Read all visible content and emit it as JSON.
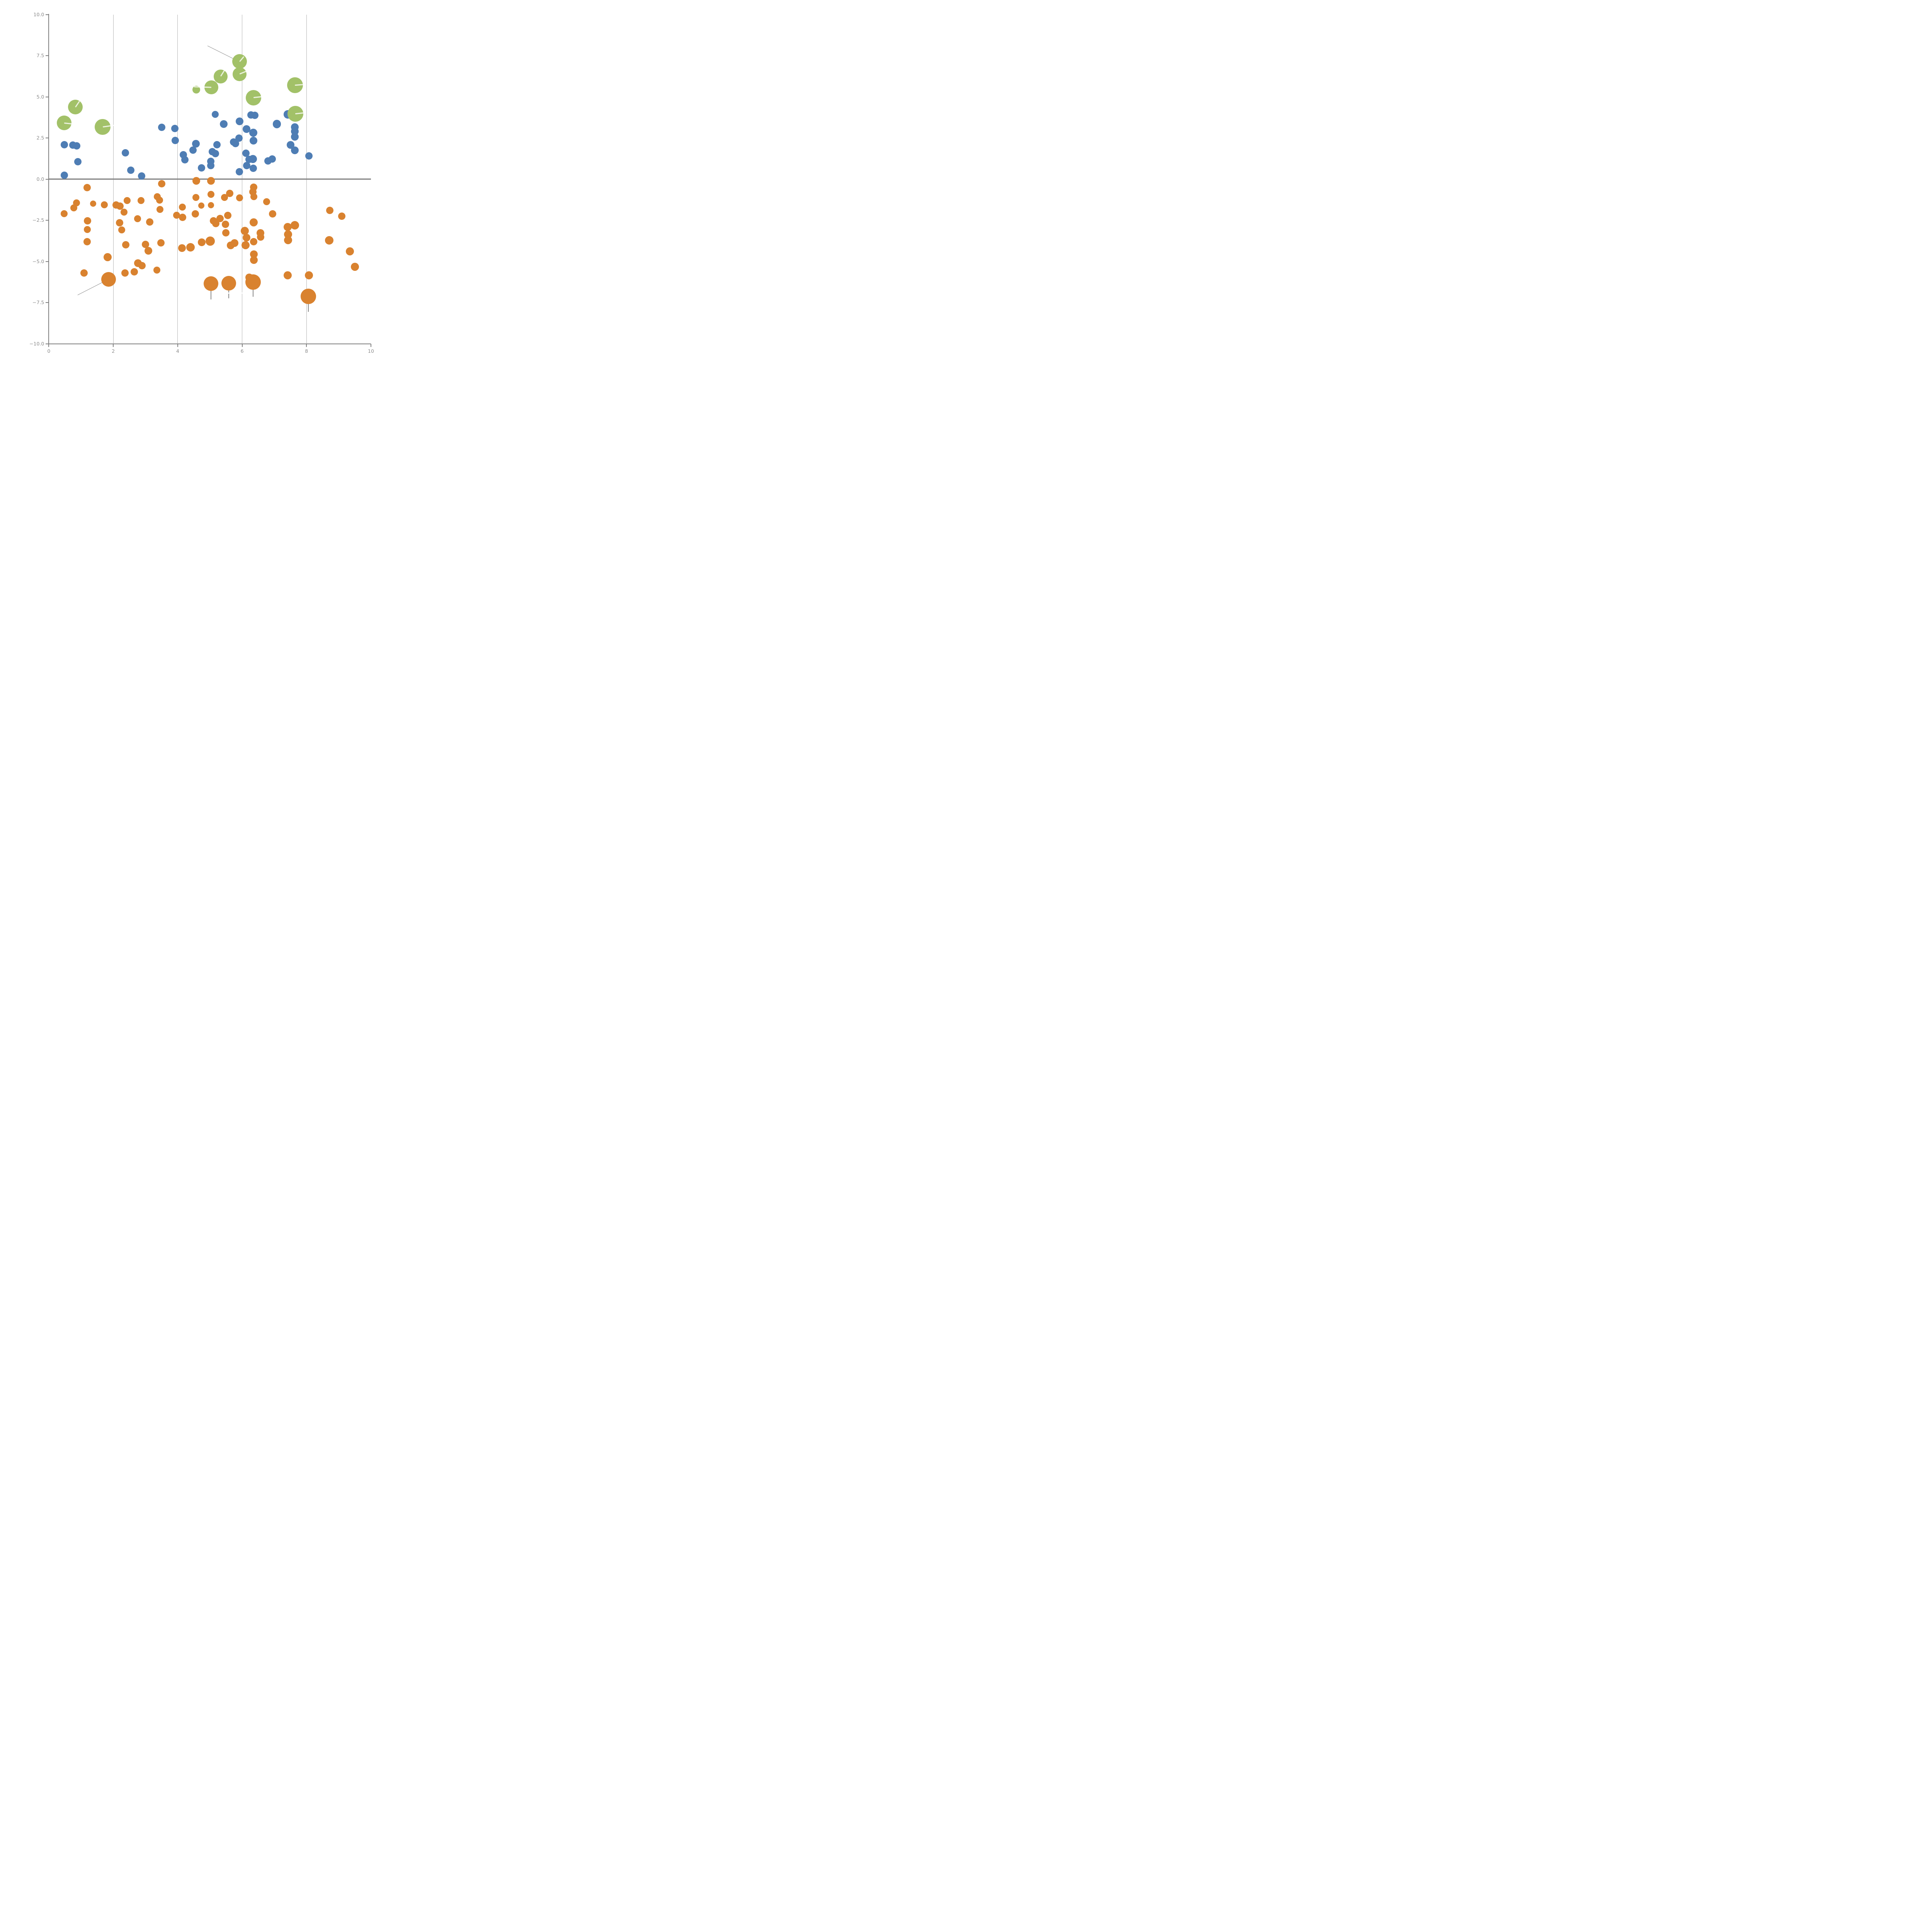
{
  "chart_data": {
    "type": "scatter",
    "title": "",
    "xlabel": "",
    "ylabel": "",
    "xlim": [
      0,
      10
    ],
    "ylim": [
      -10,
      10
    ],
    "grid": "vertical-only",
    "grid_x": [
      2,
      4,
      6,
      8
    ],
    "zero_line_y": 0,
    "x_ticks": [
      {
        "v": 0,
        "label": "0"
      },
      {
        "v": 2,
        "label": "2"
      },
      {
        "v": 4,
        "label": "4"
      },
      {
        "v": 6,
        "label": "6"
      },
      {
        "v": 8,
        "label": "8"
      },
      {
        "v": 10,
        "label": "10"
      }
    ],
    "y_ticks": [
      {
        "v": 10,
        "label": "10.0"
      },
      {
        "v": 7.5,
        "label": "7.5"
      },
      {
        "v": 5,
        "label": "5.0"
      },
      {
        "v": 2.5,
        "label": "2.5"
      },
      {
        "v": 0,
        "label": "0.0"
      },
      {
        "v": -2.5,
        "label": "−2.5"
      },
      {
        "v": -5,
        "label": "−5.0"
      },
      {
        "v": -7.5,
        "label": "−7.5"
      },
      {
        "v": -10,
        "label": "−10.0"
      }
    ],
    "colors": {
      "green": "#a2c168",
      "blue": "#4e7db4",
      "orange": "#d9822f",
      "axis": "#7f7f7f",
      "gridline": "#b3b3b3",
      "tick_label": "#8c8c8c",
      "annotation": "#888888",
      "slash": "rgba(255,255,255,0.78)"
    },
    "series": [
      {
        "name": "green-bubbles",
        "color": "#a2c168",
        "points": [
          {
            "x": 0.82,
            "y": 4.37,
            "r": 19,
            "slash": {
              "angle": 56,
              "len": 19
            }
          },
          {
            "x": 0.47,
            "y": 3.42,
            "r": 19,
            "slash": {
              "angle": -6,
              "len": 27
            }
          },
          {
            "x": 1.67,
            "y": 3.17,
            "r": 20.5,
            "slash": {
              "angle": 8,
              "len": 30
            }
          },
          {
            "x": 4.58,
            "y": 5.43,
            "r": 10,
            "slash": null
          },
          {
            "x": 5.04,
            "y": 5.57,
            "r": 18,
            "slash": {
              "angle": 178,
              "len": 45
            }
          },
          {
            "x": 5.33,
            "y": 6.24,
            "r": 18,
            "slash": {
              "angle": 58,
              "len": 18
            }
          },
          {
            "x": 5.92,
            "y": 7.15,
            "r": 19,
            "slash": {
              "angle": 50,
              "len": 17
            }
          },
          {
            "x": 5.92,
            "y": 6.38,
            "r": 18,
            "slash": {
              "angle": 22,
              "len": 20
            }
          },
          {
            "x": 6.35,
            "y": 4.95,
            "r": 20,
            "slash": {
              "angle": 6,
              "len": 21
            }
          },
          {
            "x": 7.64,
            "y": 5.71,
            "r": 20.5,
            "slash": {
              "angle": 4,
              "len": 24
            }
          },
          {
            "x": 7.65,
            "y": 3.98,
            "r": 20.5,
            "slash": {
              "angle": 6,
              "len": 23
            }
          }
        ]
      },
      {
        "name": "blue-dots",
        "color": "#4e7db4",
        "points": [
          {
            "x": 0.48,
            "y": 2.08,
            "r": 9.5
          },
          {
            "x": 0.74,
            "y": 2.06,
            "r": 9.5
          },
          {
            "x": 0.87,
            "y": 2.03,
            "r": 9.5
          },
          {
            "x": 0.9,
            "y": 1.06,
            "r": 9.5
          },
          {
            "x": 0.48,
            "y": 0.23,
            "r": 9.5
          },
          {
            "x": 2.38,
            "y": 1.61,
            "r": 9.5
          },
          {
            "x": 2.55,
            "y": 0.54,
            "r": 9.5
          },
          {
            "x": 2.88,
            "y": 0.2,
            "r": 9.5
          },
          {
            "x": 3.51,
            "y": 3.15,
            "r": 9.5
          },
          {
            "x": 3.91,
            "y": 3.07,
            "r": 9.5
          },
          {
            "x": 3.92,
            "y": 2.34,
            "r": 9.5
          },
          {
            "x": 4.18,
            "y": 1.48,
            "r": 9.5
          },
          {
            "x": 4.22,
            "y": 1.17,
            "r": 9.5
          },
          {
            "x": 4.48,
            "y": 1.77,
            "r": 9.5
          },
          {
            "x": 4.57,
            "y": 2.14,
            "r": 10
          },
          {
            "x": 4.74,
            "y": 0.69,
            "r": 9.5
          },
          {
            "x": 5.03,
            "y": 1.08,
            "r": 9.5
          },
          {
            "x": 5.03,
            "y": 0.82,
            "r": 9.5
          },
          {
            "x": 5.07,
            "y": 1.66,
            "r": 9.5
          },
          {
            "x": 5.17,
            "y": 1.56,
            "r": 9.5
          },
          {
            "x": 5.22,
            "y": 2.08,
            "r": 9.5
          },
          {
            "x": 5.17,
            "y": 3.93,
            "r": 9
          },
          {
            "x": 5.43,
            "y": 3.35,
            "r": 10
          },
          {
            "x": 5.73,
            "y": 2.25,
            "r": 9.5
          },
          {
            "x": 5.9,
            "y": 2.5,
            "r": 9.5
          },
          {
            "x": 5.8,
            "y": 2.16,
            "r": 9.5
          },
          {
            "x": 5.92,
            "y": 3.51,
            "r": 10
          },
          {
            "x": 5.91,
            "y": 0.45,
            "r": 9.5
          },
          {
            "x": 6.14,
            "y": 3.04,
            "r": 10
          },
          {
            "x": 6.35,
            "y": 2.82,
            "r": 10.5
          },
          {
            "x": 6.35,
            "y": 2.34,
            "r": 10
          },
          {
            "x": 6.12,
            "y": 1.58,
            "r": 9.5
          },
          {
            "x": 6.22,
            "y": 1.19,
            "r": 9.5
          },
          {
            "x": 6.33,
            "y": 1.23,
            "r": 10.5
          },
          {
            "x": 6.14,
            "y": 0.83,
            "r": 9.5
          },
          {
            "x": 6.35,
            "y": 0.67,
            "r": 9.5
          },
          {
            "x": 6.27,
            "y": 3.89,
            "r": 9.5
          },
          {
            "x": 6.4,
            "y": 3.87,
            "r": 9.5
          },
          {
            "x": 6.8,
            "y": 1.11,
            "r": 9.5
          },
          {
            "x": 6.93,
            "y": 1.23,
            "r": 9.5
          },
          {
            "x": 7.08,
            "y": 3.35,
            "r": 10.8
          },
          {
            "x": 7.42,
            "y": 3.93,
            "r": 10.8
          },
          {
            "x": 7.64,
            "y": 3.15,
            "r": 10
          },
          {
            "x": 7.64,
            "y": 2.89,
            "r": 10
          },
          {
            "x": 7.64,
            "y": 2.57,
            "r": 10
          },
          {
            "x": 7.51,
            "y": 2.08,
            "r": 10
          },
          {
            "x": 7.64,
            "y": 1.74,
            "r": 10
          },
          {
            "x": 8.07,
            "y": 1.4,
            "r": 9.5
          }
        ]
      },
      {
        "name": "orange-dots",
        "color": "#d9822f",
        "points": [
          {
            "x": 1.19,
            "y": -0.52,
            "r": 9.5
          },
          {
            "x": 0.86,
            "y": -1.43,
            "r": 9
          },
          {
            "x": 0.77,
            "y": -1.75,
            "r": 9
          },
          {
            "x": 0.48,
            "y": -2.1,
            "r": 9
          },
          {
            "x": 1.38,
            "y": -1.49,
            "r": 8
          },
          {
            "x": 1.72,
            "y": -1.55,
            "r": 9
          },
          {
            "x": 2.09,
            "y": -1.58,
            "r": 9.5
          },
          {
            "x": 2.21,
            "y": -1.64,
            "r": 9.5
          },
          {
            "x": 2.43,
            "y": -1.3,
            "r": 9
          },
          {
            "x": 2.86,
            "y": -1.3,
            "r": 9
          },
          {
            "x": 2.33,
            "y": -2.01,
            "r": 9
          },
          {
            "x": 1.2,
            "y": -2.54,
            "r": 9.5
          },
          {
            "x": 2.2,
            "y": -2.65,
            "r": 9.5
          },
          {
            "x": 2.75,
            "y": -2.41,
            "r": 9
          },
          {
            "x": 3.13,
            "y": -2.61,
            "r": 9.5
          },
          {
            "x": 1.19,
            "y": -3.07,
            "r": 9
          },
          {
            "x": 2.26,
            "y": -3.09,
            "r": 9
          },
          {
            "x": 3.37,
            "y": -1.06,
            "r": 9
          },
          {
            "x": 3.44,
            "y": -1.27,
            "r": 9
          },
          {
            "x": 3.45,
            "y": -1.84,
            "r": 9
          },
          {
            "x": 3.5,
            "y": -0.27,
            "r": 9.5
          },
          {
            "x": 4.58,
            "y": -0.1,
            "r": 10
          },
          {
            "x": 5.03,
            "y": -0.1,
            "r": 10
          },
          {
            "x": 4.56,
            "y": -1.12,
            "r": 9
          },
          {
            "x": 5.03,
            "y": -0.93,
            "r": 9
          },
          {
            "x": 5.62,
            "y": -0.87,
            "r": 9.5
          },
          {
            "x": 5.45,
            "y": -1.12,
            "r": 9
          },
          {
            "x": 5.92,
            "y": -1.13,
            "r": 9
          },
          {
            "x": 6.36,
            "y": -0.5,
            "r": 9.5
          },
          {
            "x": 6.34,
            "y": -0.78,
            "r": 9.5
          },
          {
            "x": 6.36,
            "y": -1.06,
            "r": 9
          },
          {
            "x": 4.14,
            "y": -1.7,
            "r": 9
          },
          {
            "x": 4.73,
            "y": -1.6,
            "r": 8
          },
          {
            "x": 5.03,
            "y": -1.58,
            "r": 8
          },
          {
            "x": 3.96,
            "y": -2.2,
            "r": 9
          },
          {
            "x": 4.15,
            "y": -2.33,
            "r": 9.5
          },
          {
            "x": 4.55,
            "y": -2.12,
            "r": 9.5
          },
          {
            "x": 5.11,
            "y": -2.53,
            "r": 9.5
          },
          {
            "x": 5.31,
            "y": -2.4,
            "r": 9.5
          },
          {
            "x": 5.56,
            "y": -2.2,
            "r": 9.5
          },
          {
            "x": 5.18,
            "y": -2.69,
            "r": 9.5
          },
          {
            "x": 5.48,
            "y": -2.74,
            "r": 9.5
          },
          {
            "x": 5.5,
            "y": -3.27,
            "r": 9.5
          },
          {
            "x": 6.36,
            "y": -2.63,
            "r": 10.5
          },
          {
            "x": 6.95,
            "y": -2.12,
            "r": 9.5
          },
          {
            "x": 6.76,
            "y": -1.38,
            "r": 9
          },
          {
            "x": 6.08,
            "y": -3.14,
            "r": 10.5
          },
          {
            "x": 6.14,
            "y": -3.55,
            "r": 10
          },
          {
            "x": 6.11,
            "y": -4.01,
            "r": 10.5
          },
          {
            "x": 6.36,
            "y": -3.81,
            "r": 9.5
          },
          {
            "x": 6.57,
            "y": -3.27,
            "r": 10
          },
          {
            "x": 6.57,
            "y": -3.52,
            "r": 9.5
          },
          {
            "x": 7.42,
            "y": -2.91,
            "r": 10.5
          },
          {
            "x": 7.64,
            "y": -2.8,
            "r": 11
          },
          {
            "x": 7.43,
            "y": -3.36,
            "r": 10.5
          },
          {
            "x": 7.43,
            "y": -3.7,
            "r": 10.5
          },
          {
            "x": 4.13,
            "y": -4.19,
            "r": 10
          },
          {
            "x": 4.4,
            "y": -4.15,
            "r": 11
          },
          {
            "x": 4.74,
            "y": -3.83,
            "r": 10
          },
          {
            "x": 5.01,
            "y": -3.77,
            "r": 12
          },
          {
            "x": 5.65,
            "y": -4.03,
            "r": 10
          },
          {
            "x": 5.76,
            "y": -3.88,
            "r": 10
          },
          {
            "x": 6.36,
            "y": -4.56,
            "r": 10
          },
          {
            "x": 6.36,
            "y": -4.91,
            "r": 10
          },
          {
            "x": 3.48,
            "y": -3.88,
            "r": 9.5
          },
          {
            "x": 3.35,
            "y": -5.52,
            "r": 9
          },
          {
            "x": 1.19,
            "y": -3.8,
            "r": 9.5
          },
          {
            "x": 2.39,
            "y": -3.98,
            "r": 9.5
          },
          {
            "x": 3.0,
            "y": -3.96,
            "r": 9.5
          },
          {
            "x": 3.09,
            "y": -4.36,
            "r": 10
          },
          {
            "x": 1.83,
            "y": -4.75,
            "r": 10.5
          },
          {
            "x": 2.77,
            "y": -5.1,
            "r": 10
          },
          {
            "x": 2.89,
            "y": -5.25,
            "r": 9.5
          },
          {
            "x": 2.65,
            "y": -5.63,
            "r": 9.5
          },
          {
            "x": 2.36,
            "y": -5.71,
            "r": 9.5
          },
          {
            "x": 1.09,
            "y": -5.71,
            "r": 9.5
          },
          {
            "x": 1.86,
            "y": -6.09,
            "r": 19
          },
          {
            "x": 5.03,
            "y": -6.35,
            "r": 19
          },
          {
            "x": 5.59,
            "y": -6.32,
            "r": 19
          },
          {
            "x": 6.34,
            "y": -6.26,
            "r": 20
          },
          {
            "x": 6.22,
            "y": -5.98,
            "r": 10
          },
          {
            "x": 7.42,
            "y": -5.85,
            "r": 10.5
          },
          {
            "x": 8.07,
            "y": -5.84,
            "r": 10.5
          },
          {
            "x": 8.06,
            "y": -7.13,
            "r": 20
          },
          {
            "x": 9.35,
            "y": -4.38,
            "r": 10.5
          },
          {
            "x": 9.5,
            "y": -5.33,
            "r": 10.5
          },
          {
            "x": 8.71,
            "y": -3.71,
            "r": 11
          },
          {
            "x": 8.72,
            "y": -1.89,
            "r": 9.5
          },
          {
            "x": 9.09,
            "y": -2.24,
            "r": 9.5
          }
        ]
      }
    ],
    "annotations": {
      "gray_lines": [
        {
          "x1": 4.93,
          "y1": 8.1,
          "x2": 5.89,
          "y2": 7.16
        },
        {
          "x1": 0.9,
          "y1": -7.05,
          "x2": 1.85,
          "y2": -6.1
        }
      ],
      "stems": [
        {
          "x": 5.03,
          "y1": -6.42,
          "y2": -7.3
        },
        {
          "x": 5.59,
          "y1": -6.45,
          "y2": -7.25
        },
        {
          "x": 6.34,
          "y1": -6.38,
          "y2": -7.15
        },
        {
          "x": 8.06,
          "y1": -7.18,
          "y2": -8.06
        }
      ],
      "white_lines": [
        {
          "x1": 5.5,
          "y1": -6.93,
          "x2": 6.32,
          "y2": -6.93
        }
      ]
    }
  }
}
